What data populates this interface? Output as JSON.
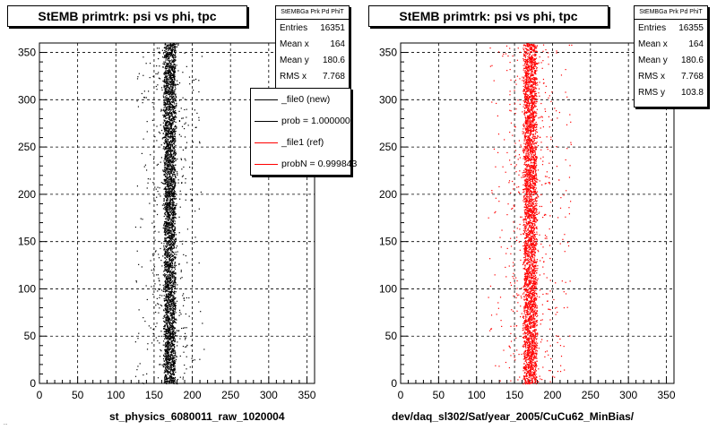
{
  "footnote": "...",
  "chart_data": [
    {
      "type": "scatter",
      "title": "StEMB primtrk: psi vs phi, tpc",
      "xlabel": "st_physics_6080011_raw_1020004",
      "ylabel": "",
      "xlim": [
        0,
        360
      ],
      "ylim": [
        0,
        360
      ],
      "xticks": [
        "0",
        "50",
        "100",
        "150",
        "200",
        "250",
        "300",
        "350"
      ],
      "yticks": [
        "0",
        "50",
        "100",
        "150",
        "200",
        "250",
        "300",
        "350"
      ],
      "grid": true,
      "marker_color": "#000000",
      "band": {
        "center_x": 170,
        "core_halfwidth": 9,
        "tail_halfwidth": 45
      },
      "stats": {
        "header": "StEMBGa Prk Pd PhiT",
        "rows": [
          {
            "label": "Entries",
            "value": "16351"
          },
          {
            "label": "Mean x",
            "value": "164"
          },
          {
            "label": "Mean y",
            "value": "180.6"
          },
          {
            "label": "RMS x",
            "value": "7.768"
          }
        ]
      },
      "legend": {
        "placement": "top-right",
        "entries": [
          {
            "label": "_file0 (new)",
            "color": "#000000"
          },
          {
            "label": "prob = 1.000000",
            "color": "#000000"
          },
          {
            "label": "_file1 (ref)",
            "color": "#ff0000"
          },
          {
            "label": "probN = 0.999843",
            "color": "#ff0000"
          }
        ]
      }
    },
    {
      "type": "scatter",
      "title": "StEMB primtrk: psi vs phi, tpc",
      "xlabel": "dev/daq_sl302/Sat/year_2005/CuCu62_MinBias/",
      "ylabel": "",
      "xlim": [
        0,
        360
      ],
      "ylim": [
        0,
        360
      ],
      "xticks": [
        "0",
        "50",
        "100",
        "150",
        "200",
        "250",
        "300",
        "350"
      ],
      "yticks": [
        "0",
        "50",
        "100",
        "150",
        "200",
        "250",
        "300",
        "350"
      ],
      "grid": true,
      "marker_color": "#ff0000",
      "band": {
        "center_x": 170,
        "core_halfwidth": 10,
        "tail_halfwidth": 55
      },
      "stats": {
        "header": "StEMBGa Prk Pd PhiT",
        "rows": [
          {
            "label": "Entries",
            "value": "16355"
          },
          {
            "label": "Mean x",
            "value": "164"
          },
          {
            "label": "Mean y",
            "value": "180.6"
          },
          {
            "label": "RMS x",
            "value": "7.768"
          },
          {
            "label": "RMS y",
            "value": "103.8"
          }
        ]
      }
    }
  ]
}
